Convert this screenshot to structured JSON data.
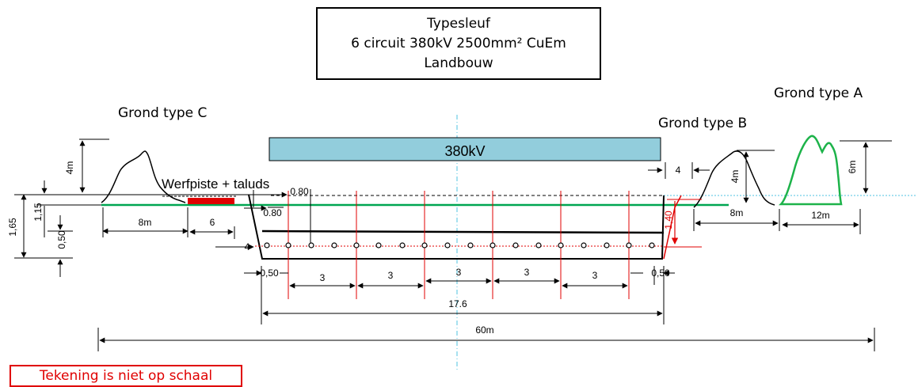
{
  "title": {
    "line1": "Typesleuf",
    "line2": "6 circuit 380kV 2500mm² CuEm",
    "line3": "Landbouw"
  },
  "ground_labels": {
    "type_a": "Grond type A",
    "type_b": "Grond type B",
    "type_c": "Grond type C"
  },
  "voltage_bar": "380kV",
  "werfpiste": "Werfpiste + taluds",
  "note": "Tekening is niet op schaal",
  "dims": {
    "left_height_c": "4m",
    "left_1_65": "1,65",
    "left_1_15": "1,15",
    "left_0_50": "0,50",
    "left_8m": "8m",
    "left_6": "6",
    "left_4": "4",
    "top_0_80a": "0.80",
    "top_0_80b": "0.80",
    "bottom_0_50_left": "0,50",
    "bottom_0_50_right": "0,50",
    "spacing": [
      "3",
      "3",
      "3",
      "3",
      "3"
    ],
    "trench_width": "17.6",
    "total_width": "60m",
    "right_4": "4",
    "right_1_40": "1,40",
    "right_4m_b": "4m",
    "right_8m_b": "8m",
    "right_6m_a": "6m",
    "right_12m_a": "12m"
  },
  "colors": {
    "voltage_bar_fill": "#92cddc",
    "ground_line": "#00a651",
    "soil_a": "#1db34a",
    "red_marks": "#e00000",
    "axis_line": "#4fc3e0"
  }
}
